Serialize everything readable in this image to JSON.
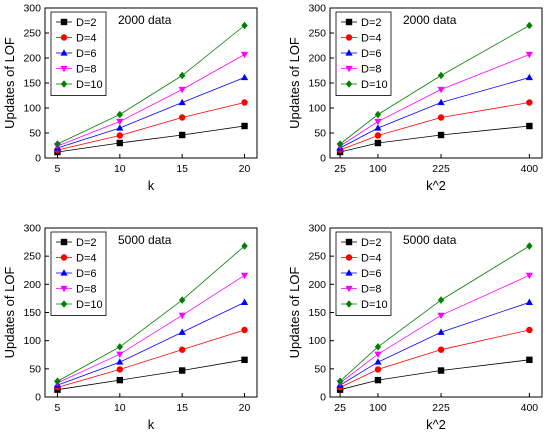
{
  "chart_data": [
    {
      "type": "line",
      "xlabel": "k",
      "ylabel": "Updates of LOF",
      "annotation": "2000 data",
      "x": [
        5,
        10,
        15,
        20
      ],
      "xticks": [
        "5",
        "10",
        "15",
        "20"
      ],
      "xlim": [
        4,
        21
      ],
      "ylim": [
        0,
        300
      ],
      "yticks": [
        "0",
        "50",
        "100",
        "150",
        "200",
        "250",
        "300"
      ],
      "legend_position": "top-left",
      "series": [
        {
          "name": "D=2",
          "marker": "square",
          "color": "#000000",
          "values": [
            12,
            30,
            46,
            64
          ]
        },
        {
          "name": "D=4",
          "marker": "circle",
          "color": "#ff0000",
          "values": [
            16,
            45,
            81,
            111
          ]
        },
        {
          "name": "D=6",
          "marker": "triangle-up",
          "color": "#0000ff",
          "values": [
            20,
            60,
            111,
            161
          ]
        },
        {
          "name": "D=8",
          "marker": "triangle-down",
          "color": "#ff00ff",
          "values": [
            24,
            73,
            137,
            207
          ]
        },
        {
          "name": "D=10",
          "marker": "diamond",
          "color": "#008000",
          "values": [
            28,
            87,
            165,
            265
          ]
        }
      ]
    },
    {
      "type": "line",
      "xlabel": "k^2",
      "ylabel": "Updates of LOF",
      "annotation": "2000 data",
      "x": [
        25,
        100,
        225,
        400
      ],
      "xticks": [
        "25",
        "100",
        "225",
        "400"
      ],
      "xlim": [
        5,
        425
      ],
      "ylim": [
        0,
        300
      ],
      "yticks": [
        "0",
        "50",
        "100",
        "150",
        "200",
        "250",
        "300"
      ],
      "legend_position": "top-left",
      "series": [
        {
          "name": "D=2",
          "marker": "square",
          "color": "#000000",
          "values": [
            12,
            30,
            46,
            64
          ]
        },
        {
          "name": "D=4",
          "marker": "circle",
          "color": "#ff0000",
          "values": [
            16,
            45,
            81,
            111
          ]
        },
        {
          "name": "D=6",
          "marker": "triangle-up",
          "color": "#0000ff",
          "values": [
            20,
            60,
            111,
            161
          ]
        },
        {
          "name": "D=8",
          "marker": "triangle-down",
          "color": "#ff00ff",
          "values": [
            24,
            73,
            137,
            207
          ]
        },
        {
          "name": "D=10",
          "marker": "diamond",
          "color": "#008000",
          "values": [
            28,
            87,
            165,
            265
          ]
        }
      ]
    },
    {
      "type": "line",
      "xlabel": "k",
      "ylabel": "Updates of LOF",
      "annotation": "5000 data",
      "x": [
        5,
        10,
        15,
        20
      ],
      "xticks": [
        "5",
        "10",
        "15",
        "20"
      ],
      "xlim": [
        4,
        21
      ],
      "ylim": [
        0,
        300
      ],
      "yticks": [
        "0",
        "50",
        "100",
        "150",
        "200",
        "250",
        "300"
      ],
      "legend_position": "top-left",
      "series": [
        {
          "name": "D=2",
          "marker": "square",
          "color": "#000000",
          "values": [
            13,
            30,
            47,
            66
          ]
        },
        {
          "name": "D=4",
          "marker": "circle",
          "color": "#ff0000",
          "values": [
            17,
            49,
            84,
            119
          ]
        },
        {
          "name": "D=6",
          "marker": "triangle-up",
          "color": "#0000ff",
          "values": [
            21,
            62,
            115,
            168
          ]
        },
        {
          "name": "D=8",
          "marker": "triangle-down",
          "color": "#ff00ff",
          "values": [
            25,
            76,
            145,
            216
          ]
        },
        {
          "name": "D=10",
          "marker": "diamond",
          "color": "#008000",
          "values": [
            28,
            89,
            172,
            268
          ]
        }
      ]
    },
    {
      "type": "line",
      "xlabel": "k^2",
      "ylabel": "Updates of LOF",
      "annotation": "5000 data",
      "x": [
        25,
        100,
        225,
        400
      ],
      "xticks": [
        "25",
        "100",
        "225",
        "400"
      ],
      "xlim": [
        5,
        425
      ],
      "ylim": [
        0,
        300
      ],
      "yticks": [
        "0",
        "50",
        "100",
        "150",
        "200",
        "250",
        "300"
      ],
      "legend_position": "top-left",
      "series": [
        {
          "name": "D=2",
          "marker": "square",
          "color": "#000000",
          "values": [
            13,
            30,
            47,
            66
          ]
        },
        {
          "name": "D=4",
          "marker": "circle",
          "color": "#ff0000",
          "values": [
            17,
            49,
            84,
            119
          ]
        },
        {
          "name": "D=6",
          "marker": "triangle-up",
          "color": "#0000ff",
          "values": [
            21,
            62,
            115,
            168
          ]
        },
        {
          "name": "D=8",
          "marker": "triangle-down",
          "color": "#ff00ff",
          "values": [
            25,
            76,
            145,
            216
          ]
        },
        {
          "name": "D=10",
          "marker": "diamond",
          "color": "#008000",
          "values": [
            28,
            89,
            172,
            268
          ]
        }
      ]
    }
  ]
}
